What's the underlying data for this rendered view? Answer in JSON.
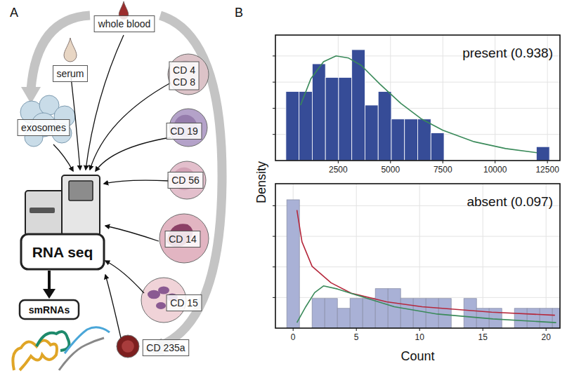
{
  "panel_a": {
    "letter": "A",
    "whole_blood": "whole blood",
    "serum": "serum",
    "exosomes": "exosomes",
    "cells": [
      {
        "labels": [
          "CD 4",
          "CD 8"
        ]
      },
      {
        "labels": [
          "CD 19"
        ]
      },
      {
        "labels": [
          "CD 56"
        ]
      },
      {
        "labels": [
          "CD 14"
        ]
      },
      {
        "labels": [
          "CD 15"
        ]
      },
      {
        "labels": [
          "CD 235a"
        ]
      }
    ],
    "method": "RNA seq",
    "product": "smRNAs"
  },
  "panel_b": {
    "letter": "B",
    "y_label": "Density"
  },
  "chart_data": [
    {
      "type": "histogram",
      "annotation": "present (0.938)",
      "color": "#364c97",
      "bins": [
        0,
        630,
        1260,
        1890,
        2520,
        3150,
        3780,
        4410,
        5040,
        5670,
        6300,
        6930,
        7560,
        8190,
        8820,
        9450,
        10080,
        10710,
        11340,
        11970,
        12600
      ],
      "values": [
        0.000132,
        0.000132,
        0.000185,
        0.000159,
        0.000159,
        0.000212,
        0.000106,
        0.000132,
        7.94e-05,
        7.94e-05,
        7.94e-05,
        5.29e-05,
        0,
        0,
        0,
        0,
        0,
        0,
        0,
        2.65e-05
      ],
      "xlim": [
        -500,
        13100
      ],
      "xticks": [
        2500,
        5000,
        7500,
        10000,
        12500
      ],
      "ylim": [
        0,
        0.00024
      ],
      "yticks": [
        5e-05,
        0.0001,
        0.00015,
        0.0002
      ],
      "grid": true,
      "tick_labels": "x",
      "fits": [
        {
          "type": "line",
          "color": "#3a8a5a",
          "x": [
            700,
            1200,
            1800,
            2400,
            3000,
            3600,
            4500,
            5500,
            6500,
            7500,
            9000,
            10500,
            12000
          ],
          "values": [
            0.000106,
            0.000157,
            0.000189,
            0.0002,
            0.000196,
            0.000182,
            0.000146,
            0.000109,
            7.9e-05,
            5.8e-05,
            3.6e-05,
            2.3e-05,
            1.5e-05
          ]
        }
      ]
    },
    {
      "type": "histogram",
      "annotation": "absent (0.097)",
      "color": "#a9b1d6",
      "x_label": "Count",
      "bins": [
        -0.5,
        0.5,
        1.5,
        2.5,
        3.5,
        4.5,
        5.5,
        6.5,
        7.5,
        8.5,
        9.5,
        10.5,
        11.5,
        12.5,
        13.5,
        14.5,
        15.5,
        16.5,
        17.5,
        18.5,
        19.5,
        20.5,
        21.5
      ],
      "values": [
        0.2097,
        0,
        0.0484,
        0.0484,
        0.0323,
        0.0484,
        0.0484,
        0.0645,
        0.0645,
        0.0484,
        0.0484,
        0.0484,
        0.0484,
        0,
        0.0484,
        0.0323,
        0.0323,
        0,
        0.0323,
        0.0323,
        0.0323,
        0.0323
      ],
      "xlim": [
        -1.4,
        21.1
      ],
      "xticks": [
        0,
        5,
        10,
        15,
        20
      ],
      "ylim": [
        0,
        0.236
      ],
      "yticks": [
        0.05,
        0.1,
        0.15,
        0.2
      ],
      "grid": true,
      "tick_labels": "x",
      "fits": [
        {
          "type": "line",
          "color": "#b5283c",
          "x": [
            0.3,
            0.7,
            1.5,
            3,
            4.6,
            7.4,
            10.2,
            15.7,
            20.7
          ],
          "values": [
            0.193,
            0.141,
            0.101,
            0.074,
            0.057,
            0.043,
            0.035,
            0.026,
            0.021
          ]
        },
        {
          "type": "line",
          "color": "#3a8a5a",
          "x": [
            0.3,
            1,
            1.7,
            2.4,
            3.5,
            5.8,
            8,
            11.4,
            15.8,
            20.8
          ],
          "values": [
            0.009,
            0.035,
            0.058,
            0.069,
            0.064,
            0.049,
            0.035,
            0.023,
            0.015,
            0.009
          ]
        }
      ]
    }
  ]
}
